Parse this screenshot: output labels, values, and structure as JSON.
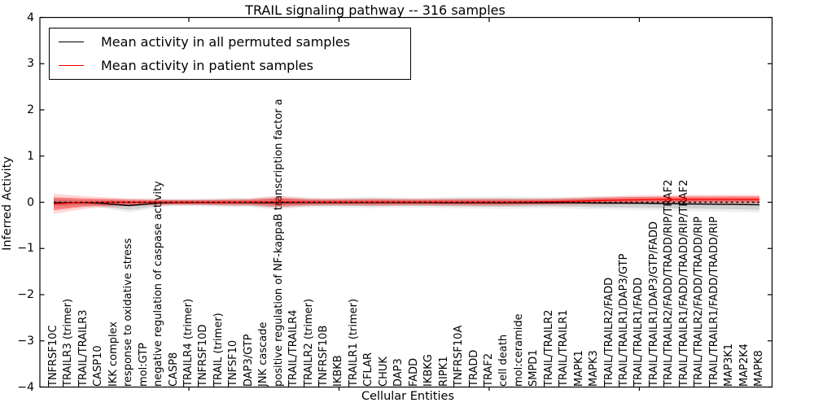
{
  "title": "TRAIL signaling pathway -- 316 samples",
  "axes": {
    "ylabel": "Inferred Activity",
    "xlabel": "Cellular Entities",
    "y_ticks": [
      "4",
      "3",
      "2",
      "1",
      "0",
      "−1",
      "−2",
      "−3",
      "−4"
    ]
  },
  "legend": {
    "items": [
      {
        "label": "Mean activity in all permuted samples",
        "color": "#000000"
      },
      {
        "label": "Mean activity in patient samples",
        "color": "#ff0000"
      }
    ]
  },
  "colors": {
    "permuted_line": "#000000",
    "patient_line": "#ff0000",
    "permuted_band": "rgba(0,0,0,0.13)",
    "permuted_band_outer": "rgba(0,0,0,0.065)",
    "patient_band": "rgba(255,0,0,0.38)",
    "patient_band_outer": "rgba(255,0,0,0.16)",
    "frame": "#000000"
  },
  "chart_data": {
    "type": "line",
    "title": "TRAIL signaling pathway -- 316 samples",
    "xlabel": "Cellular Entities",
    "ylabel": "Inferred Activity",
    "ylim": [
      -4,
      4
    ],
    "grid": false,
    "legend_position": "upper left",
    "zero_line": {
      "y": 0,
      "style": "dotted",
      "color": "#000000"
    },
    "categories": [
      "TNFRSF10C",
      "TRAILR3 (trimer)",
      "TRAIL/TRAILR3",
      "CASP10",
      "IKK complex",
      "response to oxidative stress",
      "mol:GTP",
      "negative regulation of caspase activity",
      "CASP8",
      "TRAILR4 (trimer)",
      "TNFRSF10D",
      "TRAIL (trimer)",
      "TNFSF10",
      "DAP3/GTP",
      "JNK cascade",
      "positive regulation of NF-kappaB transcription factor a",
      "TRAIL/TRAILR4",
      "TRAILR2 (trimer)",
      "TNFRSF10B",
      "IKBKB",
      "TRAILR1 (trimer)",
      "CFLAR",
      "CHUK",
      "DAP3",
      "FADD",
      "IKBKG",
      "RIPK1",
      "TNFRSF10A",
      "TRADD",
      "TRAF2",
      "cell death",
      "mol:ceramide",
      "SMPD1",
      "TRAIL/TRAILR2",
      "TRAIL/TRAILR1",
      "MAPK1",
      "MAPK3",
      "TRAIL/TRAILR2/FADD",
      "TRAIL/TRAILR1/DAP3/GTP",
      "TRAIL/TRAILR1/FADD",
      "TRAIL/TRAILR1/DAP3/GTP/FADD",
      "TRAIL/TRAILR2/FADD/TRADD/RIP/TRAF2",
      "TRAIL/TRAILR1/FADD/TRADD/RIP/TRAF2",
      "TRAIL/TRAILR2/FADD/TRADD/RIP",
      "TRAIL/TRAILR1/FADD/TRADD/RIP",
      "MAP3K1",
      "MAP2K4",
      "MAPK8"
    ],
    "series": [
      {
        "name": "Mean activity in all permuted samples",
        "color": "#000000",
        "values": [
          -0.01,
          -0.01,
          -0.01,
          -0.02,
          -0.045,
          -0.07,
          -0.045,
          -0.015,
          -0.005,
          -0.005,
          -0.005,
          -0.005,
          -0.005,
          -0.005,
          -0.01,
          -0.01,
          -0.005,
          -0.005,
          -0.005,
          -0.005,
          -0.005,
          -0.005,
          -0.005,
          -0.005,
          -0.005,
          -0.005,
          -0.008,
          -0.008,
          -0.008,
          -0.008,
          -0.008,
          -0.008,
          -0.008,
          -0.008,
          -0.01,
          -0.012,
          -0.015,
          -0.018,
          -0.02,
          -0.022,
          -0.027,
          -0.03,
          -0.035,
          -0.038,
          -0.042,
          -0.045,
          -0.05,
          -0.055
        ],
        "band_halfwidth": [
          0.075,
          0.06,
          0.05,
          0.055,
          0.08,
          0.095,
          0.08,
          0.06,
          0.05,
          0.05,
          0.055,
          0.06,
          0.07,
          0.065,
          0.08,
          0.095,
          0.08,
          0.07,
          0.07,
          0.072,
          0.075,
          0.08,
          0.075,
          0.07,
          0.07,
          0.072,
          0.078,
          0.08,
          0.082,
          0.085,
          0.088,
          0.085,
          0.08,
          0.08,
          0.082,
          0.085,
          0.09,
          0.09,
          0.092,
          0.095,
          0.095,
          0.098,
          0.1,
          0.1,
          0.102,
          0.105,
          0.105,
          0.11
        ]
      },
      {
        "name": "Mean activity in patient samples",
        "color": "#ff0000",
        "values": [
          -0.035,
          -0.018,
          -0.005,
          0,
          0,
          0,
          0,
          0,
          0,
          0,
          0,
          0,
          0,
          0.003,
          0.005,
          0.008,
          0.005,
          0.003,
          0.003,
          0.003,
          0.003,
          0.003,
          0.003,
          0.003,
          0.003,
          0.003,
          0.003,
          0.003,
          0.003,
          0.003,
          0.003,
          0.005,
          0.008,
          0.012,
          0.018,
          0.025,
          0.035,
          0.042,
          0.05,
          0.055,
          0.06,
          0.062,
          0.063,
          0.063,
          0.063,
          0.063,
          0.063,
          0.06
        ],
        "band_halfwidth": [
          0.14,
          0.115,
          0.09,
          0.075,
          0.065,
          0.055,
          0.05,
          0.045,
          0.042,
          0.042,
          0.042,
          0.045,
          0.05,
          0.05,
          0.07,
          0.085,
          0.07,
          0.055,
          0.05,
          0.05,
          0.052,
          0.055,
          0.055,
          0.052,
          0.05,
          0.05,
          0.052,
          0.055,
          0.055,
          0.055,
          0.055,
          0.052,
          0.05,
          0.05,
          0.052,
          0.055,
          0.058,
          0.058,
          0.06,
          0.06,
          0.06,
          0.06,
          0.062,
          0.062,
          0.062,
          0.063,
          0.063,
          0.065
        ]
      }
    ]
  }
}
